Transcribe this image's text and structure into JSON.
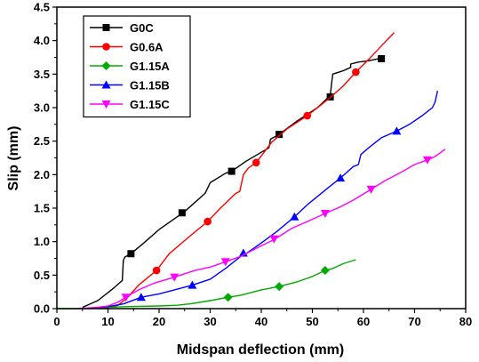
{
  "chart_data": {
    "type": "line",
    "title": "",
    "xlabel": "Midspan deflection (mm)",
    "ylabel": "Slip (mm)",
    "xlim": [
      0,
      80
    ],
    "ylim": [
      0,
      4.5
    ],
    "x_ticks": [
      "0",
      "10",
      "20",
      "30",
      "40",
      "50",
      "60",
      "70",
      "80"
    ],
    "y_ticks": [
      "0.0",
      "0.5",
      "1.0",
      "1.5",
      "2.0",
      "2.5",
      "3.0",
      "3.5",
      "4.0",
      "4.5"
    ],
    "grid": false,
    "legend_position": "top-left",
    "series": [
      {
        "name": "G0C",
        "color": "#000000",
        "marker": "square",
        "points": [
          [
            5,
            0.02
          ],
          [
            8,
            0.12
          ],
          [
            11,
            0.3
          ],
          [
            12.8,
            0.42
          ],
          [
            13,
            0.72
          ],
          [
            13.3,
            0.77
          ],
          [
            14.5,
            0.82
          ],
          [
            17,
            0.98
          ],
          [
            20,
            1.18
          ],
          [
            25,
            1.45
          ],
          [
            29,
            1.72
          ],
          [
            30,
            1.88
          ],
          [
            33,
            2.02
          ],
          [
            34.2,
            2.05
          ],
          [
            37,
            2.2
          ],
          [
            41.5,
            2.4
          ],
          [
            41.8,
            2.53
          ],
          [
            43.5,
            2.6
          ],
          [
            47,
            2.8
          ],
          [
            51,
            3.0
          ],
          [
            53.5,
            3.18
          ],
          [
            53.8,
            3.38
          ],
          [
            54,
            3.5
          ],
          [
            56,
            3.55
          ],
          [
            57.5,
            3.6
          ],
          [
            57.5,
            3.65
          ],
          [
            59,
            3.68
          ],
          [
            61,
            3.7
          ],
          [
            63.5,
            3.74
          ]
        ],
        "markers_at": [
          [
            14.5,
            0.82
          ],
          [
            24.5,
            1.43
          ],
          [
            34.2,
            2.05
          ],
          [
            43.5,
            2.6
          ],
          [
            53.5,
            3.16
          ],
          [
            63.5,
            3.73
          ]
        ]
      },
      {
        "name": "G0.6A",
        "color": "#ff0000",
        "marker": "circle",
        "points": [
          [
            9,
            0.0
          ],
          [
            12,
            0.05
          ],
          [
            14,
            0.18
          ],
          [
            16,
            0.35
          ],
          [
            19.5,
            0.57
          ],
          [
            22,
            0.82
          ],
          [
            26,
            1.08
          ],
          [
            29.5,
            1.3
          ],
          [
            32,
            1.5
          ],
          [
            35,
            1.72
          ],
          [
            35.8,
            1.75
          ],
          [
            36.5,
            2.0
          ],
          [
            37.5,
            2.1
          ],
          [
            39,
            2.18
          ],
          [
            42,
            2.48
          ],
          [
            45,
            2.68
          ],
          [
            49,
            2.88
          ],
          [
            53,
            3.12
          ],
          [
            56,
            3.32
          ],
          [
            58.5,
            3.53
          ],
          [
            61,
            3.72
          ],
          [
            63.5,
            3.92
          ],
          [
            66,
            4.12
          ]
        ],
        "markers_at": [
          [
            19.5,
            0.57
          ],
          [
            29.5,
            1.3
          ],
          [
            39,
            2.18
          ],
          [
            49,
            2.88
          ],
          [
            58.5,
            3.53
          ]
        ]
      },
      {
        "name": "G1.15A",
        "color": "#00aa00",
        "marker": "diamond",
        "points": [
          [
            0,
            0.0
          ],
          [
            4,
            0.0
          ],
          [
            10,
            0.02
          ],
          [
            14,
            0.03
          ],
          [
            20,
            0.04
          ],
          [
            23.5,
            0.05
          ],
          [
            26,
            0.07
          ],
          [
            30,
            0.12
          ],
          [
            33.5,
            0.17
          ],
          [
            36,
            0.2
          ],
          [
            40,
            0.28
          ],
          [
            43.5,
            0.33
          ],
          [
            47,
            0.4
          ],
          [
            50,
            0.48
          ],
          [
            52.5,
            0.57
          ],
          [
            54,
            0.6
          ],
          [
            56,
            0.67
          ],
          [
            58.5,
            0.73
          ]
        ],
        "markers_at": [
          [
            33.5,
            0.17
          ],
          [
            43.5,
            0.33
          ],
          [
            52.5,
            0.57
          ]
        ]
      },
      {
        "name": "G1.15B",
        "color": "#0000ff",
        "marker": "triangle-up",
        "points": [
          [
            6,
            0.0
          ],
          [
            10,
            0.03
          ],
          [
            13,
            0.07
          ],
          [
            16.5,
            0.17
          ],
          [
            20,
            0.22
          ],
          [
            23,
            0.28
          ],
          [
            26.5,
            0.35
          ],
          [
            30,
            0.44
          ],
          [
            33,
            0.6
          ],
          [
            36,
            0.78
          ],
          [
            37,
            0.82
          ],
          [
            40,
            0.98
          ],
          [
            43,
            1.15
          ],
          [
            46.5,
            1.37
          ],
          [
            49,
            1.55
          ],
          [
            53,
            1.8
          ],
          [
            55.5,
            1.95
          ],
          [
            58,
            2.12
          ],
          [
            59,
            2.15
          ],
          [
            59.5,
            2.3
          ],
          [
            61,
            2.4
          ],
          [
            63.5,
            2.55
          ],
          [
            66.5,
            2.65
          ],
          [
            69,
            2.75
          ],
          [
            71.5,
            2.88
          ],
          [
            73.5,
            3.0
          ],
          [
            74,
            3.08
          ],
          [
            74.3,
            3.18
          ],
          [
            74.5,
            3.25
          ]
        ],
        "markers_at": [
          [
            16.5,
            0.17
          ],
          [
            26.5,
            0.35
          ],
          [
            36.5,
            0.83
          ],
          [
            46.5,
            1.37
          ],
          [
            55.5,
            1.95
          ],
          [
            66.5,
            2.65
          ]
        ]
      },
      {
        "name": "G1.15C",
        "color": "#ff00ff",
        "marker": "triangle-down",
        "points": [
          [
            4,
            0.0
          ],
          [
            8,
            0.02
          ],
          [
            10,
            0.04
          ],
          [
            12,
            0.1
          ],
          [
            13.5,
            0.17
          ],
          [
            16,
            0.28
          ],
          [
            19,
            0.38
          ],
          [
            23,
            0.47
          ],
          [
            27,
            0.57
          ],
          [
            30,
            0.62
          ],
          [
            33,
            0.7
          ],
          [
            36,
            0.78
          ],
          [
            39.5,
            0.92
          ],
          [
            42.5,
            1.03
          ],
          [
            46,
            1.2
          ],
          [
            49,
            1.3
          ],
          [
            52.5,
            1.42
          ],
          [
            55.5,
            1.52
          ],
          [
            58,
            1.62
          ],
          [
            61.5,
            1.78
          ],
          [
            64,
            1.9
          ],
          [
            67,
            2.02
          ],
          [
            70,
            2.15
          ],
          [
            72.5,
            2.22
          ],
          [
            74,
            2.27
          ],
          [
            76,
            2.38
          ]
        ],
        "markers_at": [
          [
            13.5,
            0.17
          ],
          [
            23,
            0.47
          ],
          [
            33,
            0.7
          ],
          [
            42.5,
            1.04
          ],
          [
            52.5,
            1.42
          ],
          [
            61.5,
            1.78
          ],
          [
            72.5,
            2.22
          ]
        ]
      }
    ]
  }
}
